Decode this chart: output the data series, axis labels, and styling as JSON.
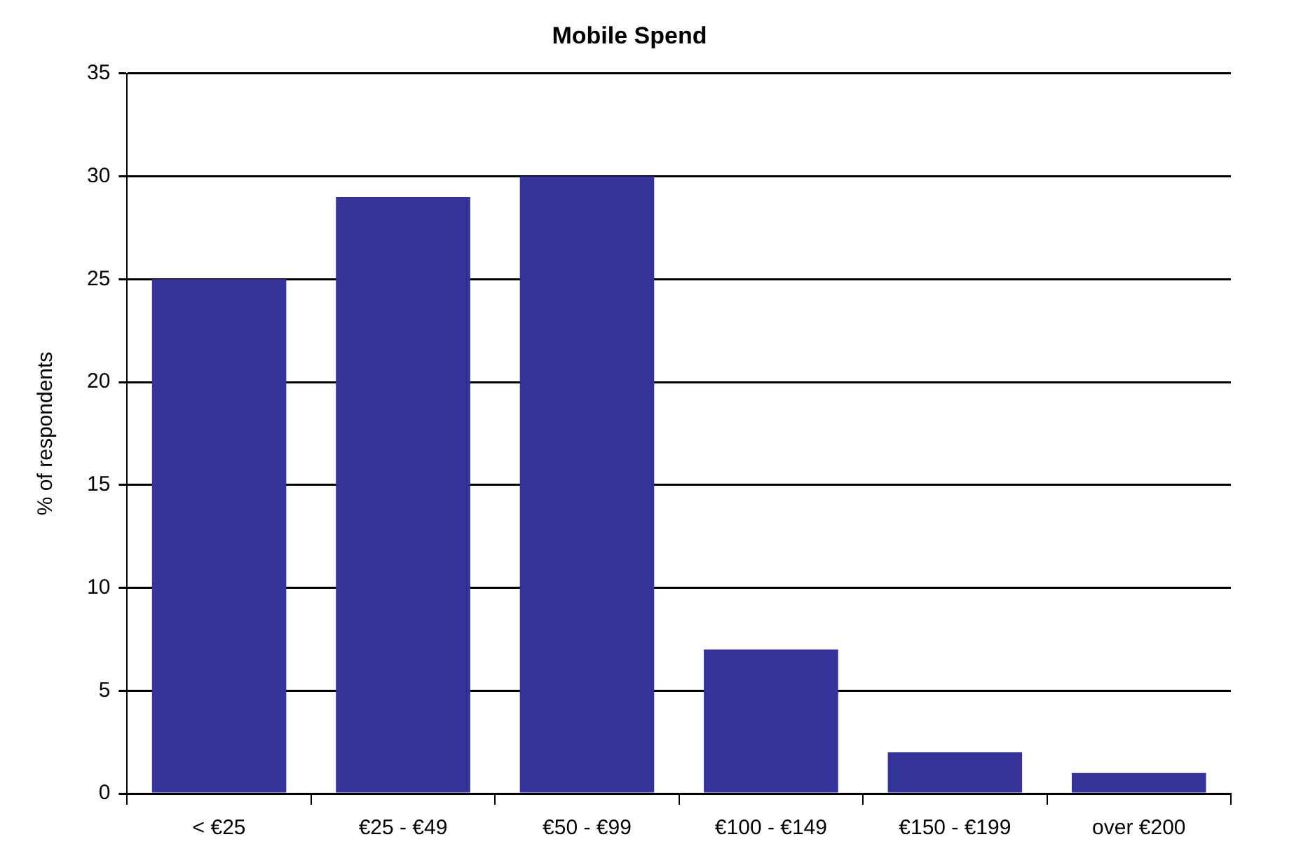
{
  "chart_data": {
    "type": "bar",
    "title": "Mobile Spend",
    "ylabel": "% of respondents",
    "categories": [
      "< €25",
      "€25 - €49",
      "€50 - €99",
      "€100 - €149",
      "€150 - €199",
      "over €200"
    ],
    "values": [
      25,
      29,
      30,
      7,
      2,
      1
    ],
    "color": "#333399",
    "ylim": [
      0,
      35
    ],
    "yticks": [
      0,
      5,
      10,
      15,
      20,
      25,
      30,
      35
    ],
    "grid": "y",
    "legend": false
  }
}
